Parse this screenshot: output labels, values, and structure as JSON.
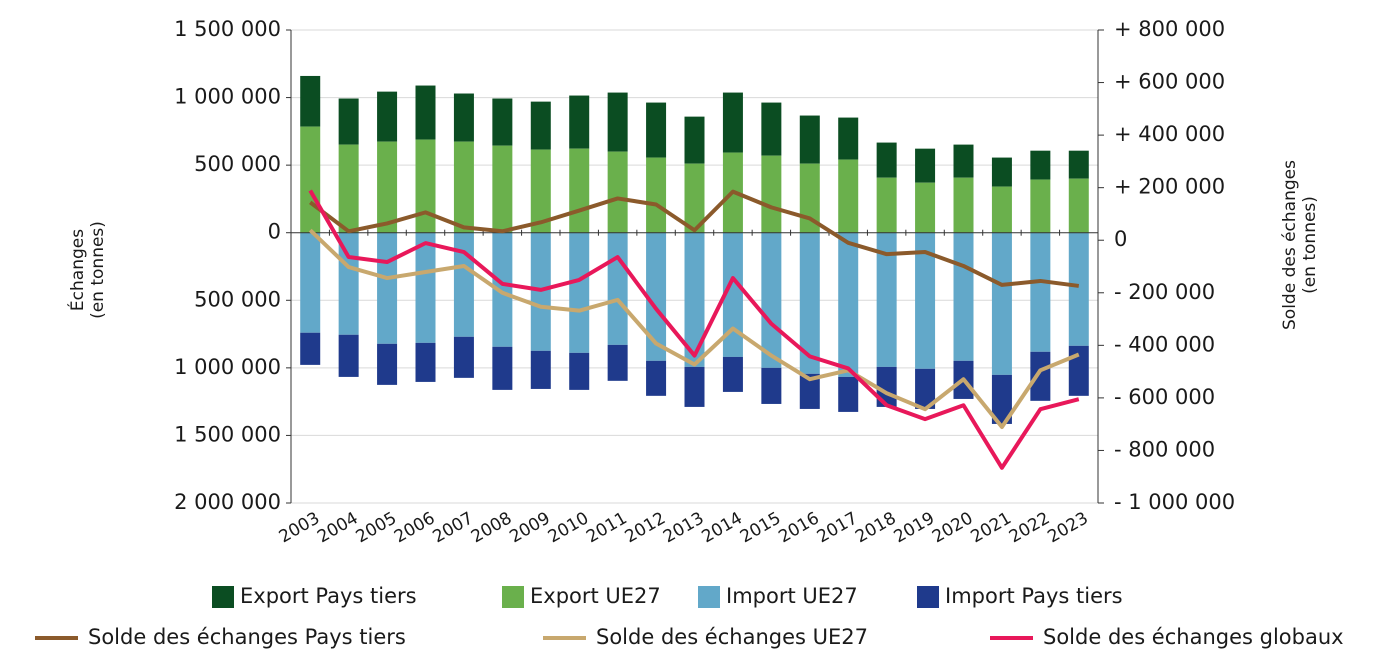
{
  "chart_data": {
    "type": "bar_line",
    "categories": [
      "2003",
      "2004",
      "2005",
      "2006",
      "2007",
      "2008",
      "2009",
      "2010",
      "2011",
      "2012",
      "2013",
      "2014",
      "2015",
      "2016",
      "2017",
      "2018",
      "2019",
      "2020",
      "2021",
      "2022",
      "2023"
    ],
    "y_label": [
      "Échanges",
      "(en tonnes)"
    ],
    "y2_label": [
      "Solde des échanges",
      "(en tonnes)"
    ],
    "ylim": [
      -2000000,
      1500000
    ],
    "yticks": [
      {
        "value": -2000000,
        "label": "2 000 000"
      },
      {
        "value": -1500000,
        "label": "1 500 000"
      },
      {
        "value": -1000000,
        "label": "1 000 000"
      },
      {
        "value": -500000,
        "label": "500 000"
      },
      0,
      {
        "value": 500000,
        "label": "500 000"
      },
      {
        "value": 1000000,
        "label": "1 000 000"
      },
      {
        "value": 1500000,
        "label": "1 500 000"
      }
    ],
    "y2lim": [
      -1000000,
      800000
    ],
    "y2ticks": [
      {
        "value": -1000000,
        "label": "- 1 000 000"
      },
      {
        "value": -800000,
        "label": "- 800 000"
      },
      {
        "value": -600000,
        "label": "- 600 000"
      },
      {
        "value": -400000,
        "label": "- 400 000"
      },
      {
        "value": -200000,
        "label": "- 200 000"
      },
      0,
      {
        "value": 200000,
        "label": "+ 200 000"
      },
      {
        "value": 400000,
        "label": "+ 400 000"
      },
      {
        "value": 600000,
        "label": "+ 600 000"
      },
      {
        "value": 800000,
        "label": "+ 800 000"
      }
    ],
    "grid": true,
    "series": [
      {
        "name": "Export Pays tiers",
        "type": "bar",
        "color": "#0b4d22",
        "values": [
          375000,
          341000,
          370000,
          400000,
          356000,
          349000,
          355000,
          393000,
          437000,
          407000,
          348000,
          444000,
          393000,
          356000,
          311000,
          260000,
          252000,
          245000,
          215000,
          214000,
          207000
        ]
      },
      {
        "name": "Export UE27",
        "type": "bar",
        "color": "#6ab04c",
        "values": [
          785000,
          652000,
          674000,
          689000,
          674000,
          644000,
          615000,
          622000,
          600000,
          556000,
          511000,
          593000,
          570000,
          511000,
          541000,
          407000,
          370000,
          407000,
          341000,
          393000,
          400000
        ]
      },
      {
        "name": "Import UE27",
        "type": "bar",
        "color": "#62a8c9",
        "values": [
          -740000,
          -755000,
          -822000,
          -815000,
          -770000,
          -844000,
          -874000,
          -889000,
          -830000,
          -948000,
          -993000,
          -919000,
          -1000000,
          -1044000,
          -1067000,
          -993000,
          -1007000,
          -948000,
          -1052000,
          -881000,
          -837000
        ]
      },
      {
        "name": "Import Pays tiers",
        "type": "bar",
        "color": "#1f3a8c",
        "values": [
          -238000,
          -312000,
          -304000,
          -289000,
          -304000,
          -319000,
          -282000,
          -274000,
          -266000,
          -259000,
          -296000,
          -259000,
          -267000,
          -260000,
          -259000,
          -296000,
          -297000,
          -282000,
          -363000,
          -363000,
          -370000
        ]
      },
      {
        "name": "Solde des échanges Pays tiers",
        "type": "line",
        "axis": "y2",
        "color": "#8b5a2b",
        "values": [
          144000,
          34000,
          64000,
          106000,
          49000,
          34000,
          68000,
          113000,
          159000,
          136000,
          38000,
          185000,
          125000,
          83000,
          -10000,
          -53000,
          -45000,
          -98000,
          -170000,
          -155000,
          -174000
        ]
      },
      {
        "name": "Solde des échanges UE27",
        "type": "line",
        "axis": "y2",
        "color": "#c8a86e",
        "values": [
          38000,
          -102000,
          -144000,
          -121000,
          -98000,
          -200000,
          -253000,
          -268000,
          -227000,
          -393000,
          -473000,
          -336000,
          -439000,
          -529000,
          -495000,
          -582000,
          -643000,
          -529000,
          -711000,
          -495000,
          -435000
        ]
      },
      {
        "name": "Solde des échanges globaux",
        "type": "line",
        "axis": "y2",
        "color": "#e8185a",
        "values": [
          189000,
          -64000,
          -83000,
          -11000,
          -45000,
          -166000,
          -189000,
          -151000,
          -64000,
          -261000,
          -439000,
          -144000,
          -318000,
          -442000,
          -488000,
          -628000,
          -681000,
          -628000,
          -866000,
          -643000,
          -605000
        ]
      }
    ]
  }
}
